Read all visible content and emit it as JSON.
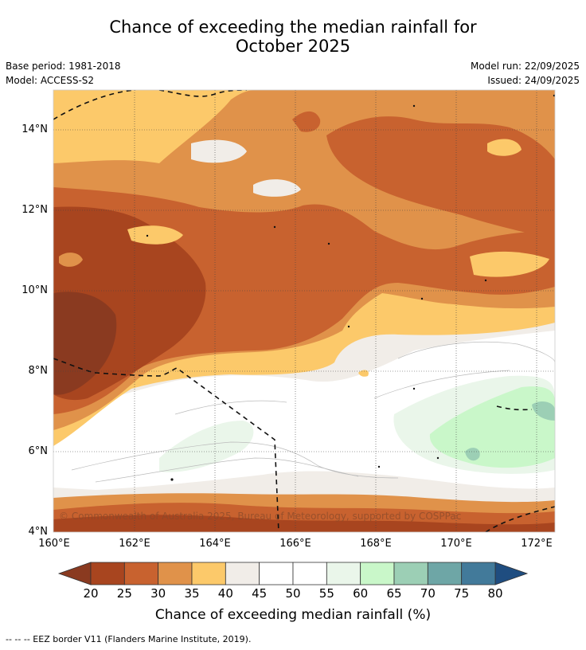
{
  "title": {
    "line1": "Chance of exceeding the median rainfall for",
    "line2": "October 2025"
  },
  "meta": {
    "base_period": "Base period: 1981-2018",
    "model": "Model: ACCESS-S2",
    "model_run": "Model run: 22/09/2025",
    "issued": "Issued: 24/09/2025"
  },
  "map": {
    "lat_ticks": [
      "14°N",
      "12°N",
      "10°N",
      "8°N",
      "6°N",
      "4°N"
    ],
    "lon_ticks": [
      "160°E",
      "162°E",
      "164°E",
      "166°E",
      "168°E",
      "170°E",
      "172°E"
    ],
    "copyright": "© Commonwealth of Australia 2025, Bureau of Meteorology, supported by COSPPac"
  },
  "colorbar": {
    "ticks": [
      "20",
      "25",
      "30",
      "35",
      "40",
      "45",
      "50",
      "55",
      "60",
      "65",
      "70",
      "75",
      "80"
    ],
    "colors": [
      "#a8451f",
      "#c8622f",
      "#e0924a",
      "#fcc96a",
      "#f1ede8",
      "#ffffff",
      "#ffffff",
      "#eaf6ea",
      "#c9f7c9",
      "#9ccfb5",
      "#6ea6a6",
      "#427a9a"
    ],
    "low_color": "#8a3a20",
    "high_color": "#1f4d80",
    "label": "Chance of exceeding median rainfall (%)"
  },
  "footer": "--  --  -- EEZ border V11 (Flanders Marine Institute, 2019)."
}
